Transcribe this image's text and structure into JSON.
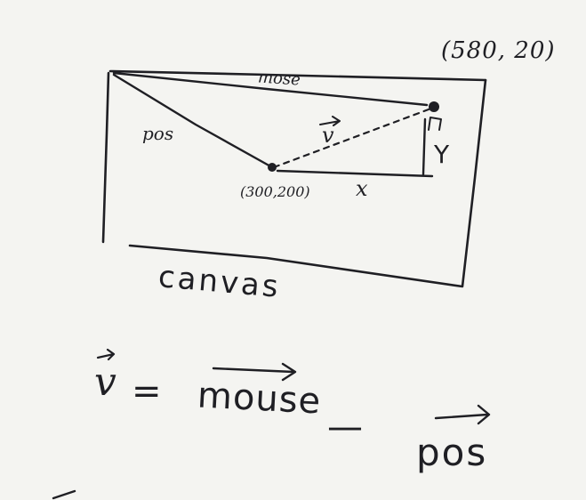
{
  "diagram": {
    "point_top_right": "(580, 20)",
    "label_mouse_top": "mose",
    "label_pos_side": "pos",
    "point_origin": "(300,200)",
    "label_x": "x",
    "label_y": "Y",
    "canvas_label": "canvas",
    "equation": {
      "lhs": "v",
      "equals": "=",
      "term_mouse": "mouse",
      "minus": "—",
      "term_pos": "pos"
    }
  }
}
